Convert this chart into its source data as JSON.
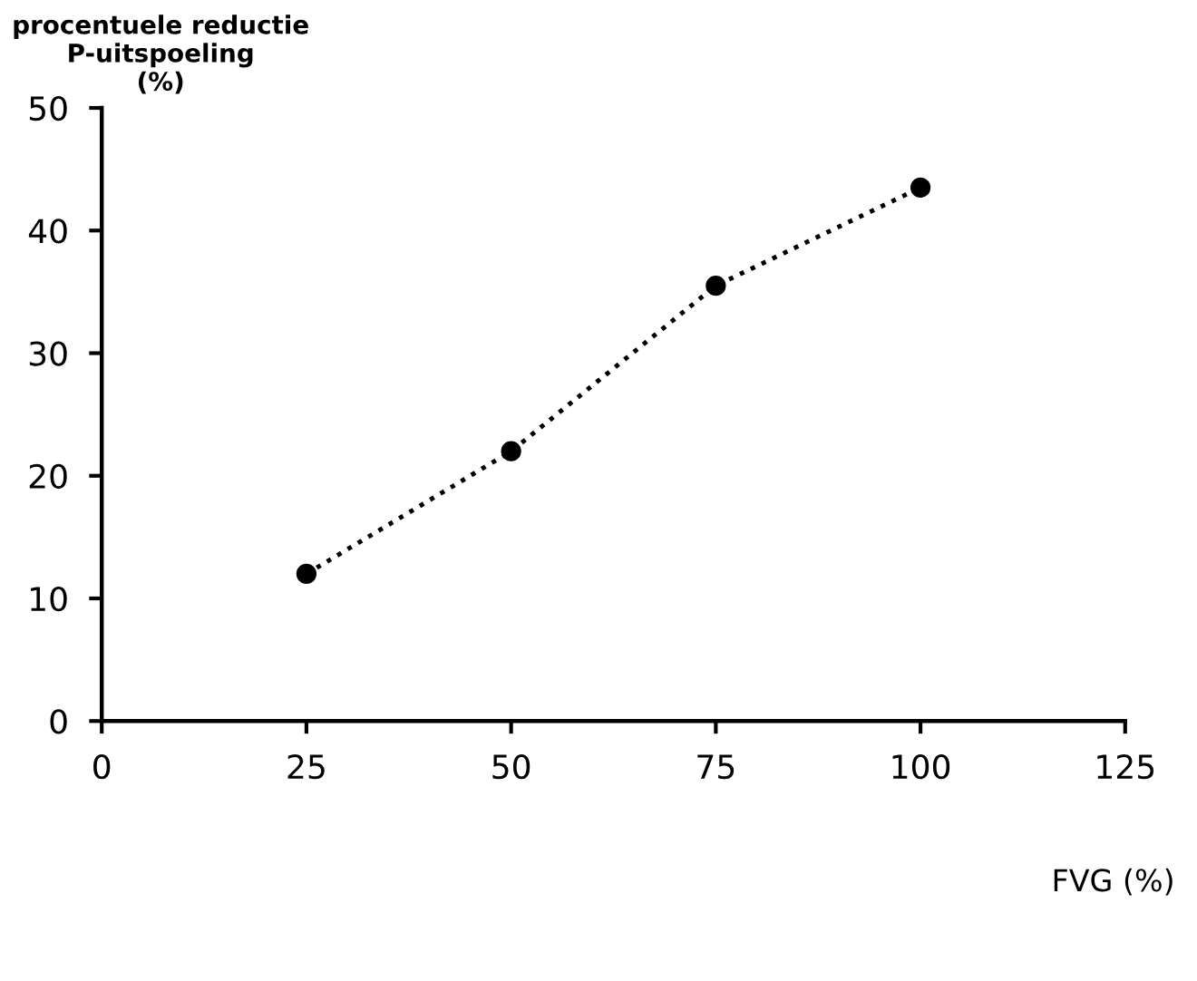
{
  "chart_data": {
    "type": "line",
    "ylabel": "procentuele reductie\nP-uitspoeling\n(%)",
    "xlabel": "FVG (%)",
    "x": [
      25,
      50,
      75,
      100
    ],
    "series": [
      {
        "color": "#000000",
        "values": [
          12,
          22,
          35.5,
          43.5
        ]
      }
    ],
    "xlim": [
      0,
      125
    ],
    "xticks": [
      0,
      25,
      50,
      75,
      100,
      125
    ],
    "ylim": [
      0,
      50
    ],
    "yticks": [
      0,
      10,
      20,
      30,
      40,
      50
    ],
    "marker": "circle",
    "line_style": "dotted",
    "grid": false,
    "legend": false
  }
}
